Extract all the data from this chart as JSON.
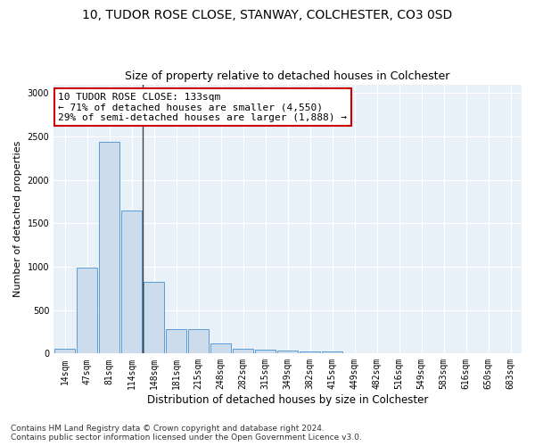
{
  "title_line1": "10, TUDOR ROSE CLOSE, STANWAY, COLCHESTER, CO3 0SD",
  "title_line2": "Size of property relative to detached houses in Colchester",
  "xlabel": "Distribution of detached houses by size in Colchester",
  "ylabel": "Number of detached properties",
  "categories": [
    "14sqm",
    "47sqm",
    "81sqm",
    "114sqm",
    "148sqm",
    "181sqm",
    "215sqm",
    "248sqm",
    "282sqm",
    "315sqm",
    "349sqm",
    "382sqm",
    "415sqm",
    "449sqm",
    "482sqm",
    "516sqm",
    "549sqm",
    "583sqm",
    "616sqm",
    "650sqm",
    "683sqm"
  ],
  "values": [
    55,
    990,
    2440,
    1650,
    830,
    285,
    280,
    120,
    50,
    45,
    35,
    22,
    25,
    0,
    0,
    0,
    0,
    0,
    0,
    0,
    0
  ],
  "bar_color": "#cddcec",
  "bar_edge_color": "#5b9bd5",
  "annotation_text": "10 TUDOR ROSE CLOSE: 133sqm\n← 71% of detached houses are smaller (4,550)\n29% of semi-detached houses are larger (1,888) →",
  "annotation_box_color": "#ffffff",
  "annotation_box_edge_color": "#cc0000",
  "vline_x": 3.5,
  "ylim": [
    0,
    3100
  ],
  "yticks": [
    0,
    500,
    1000,
    1500,
    2000,
    2500,
    3000
  ],
  "plot_bg_color": "#e8f0f8",
  "grid_color": "#ffffff",
  "fig_bg_color": "#ffffff",
  "footer_line1": "Contains HM Land Registry data © Crown copyright and database right 2024.",
  "footer_line2": "Contains public sector information licensed under the Open Government Licence v3.0.",
  "title1_fontsize": 10,
  "title2_fontsize": 9,
  "xlabel_fontsize": 8.5,
  "ylabel_fontsize": 8,
  "tick_fontsize": 7,
  "annotation_fontsize": 8,
  "footer_fontsize": 6.5
}
